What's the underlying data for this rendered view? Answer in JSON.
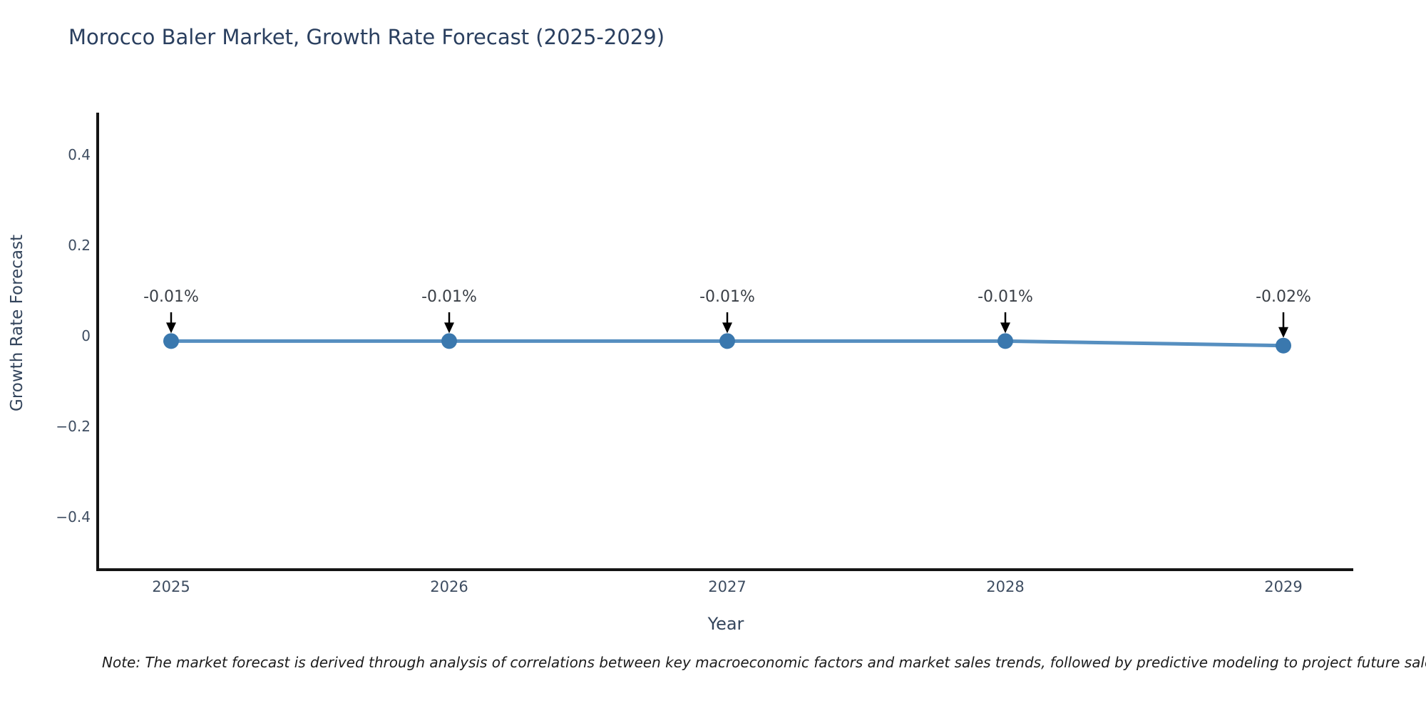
{
  "page": {
    "background": "#ffffff"
  },
  "chart": {
    "title": "Morocco Baler Market, Growth Rate Forecast (2025-2029)",
    "xlabel": "Year",
    "ylabel": "Growth Rate Forecast"
  },
  "note": "Note: The market forecast is derived through analysis of correlations between key macroeconomic factors and market sales trends, followed by predictive modeling to project future sales",
  "chart_data": {
    "type": "line",
    "title": "Morocco Baler Market, Growth Rate Forecast (2025-2029)",
    "xlabel": "Year",
    "ylabel": "Growth Rate Forecast",
    "x": [
      "2025",
      "2026",
      "2027",
      "2028",
      "2029"
    ],
    "series": [
      {
        "name": "Growth Rate Forecast",
        "values": [
          -0.01,
          -0.01,
          -0.01,
          -0.01,
          -0.02
        ]
      }
    ],
    "point_labels": [
      "-0.01%",
      "-0.01%",
      "-0.01%",
      "-0.01%",
      "-0.02%"
    ],
    "yticks": {
      "values": [
        0.4,
        0.2,
        0,
        -0.2,
        -0.4
      ],
      "labels": [
        "0.4",
        "0.2",
        "0",
        "−0.2",
        "−0.4"
      ]
    },
    "ylim": [
      -0.52,
      0.49
    ],
    "grid": false,
    "legend": "none",
    "annotation_arrows": true,
    "colors": {
      "line": "#568fc0",
      "marker": "#3a78ae",
      "axis": "#141414",
      "title_text": "#2a3f5f",
      "tick_text": "#3e4d61",
      "axis_label_text": "#34455c",
      "annotation_text": "#3a3f46",
      "arrow": "#000000",
      "background": "#ffffff"
    }
  }
}
